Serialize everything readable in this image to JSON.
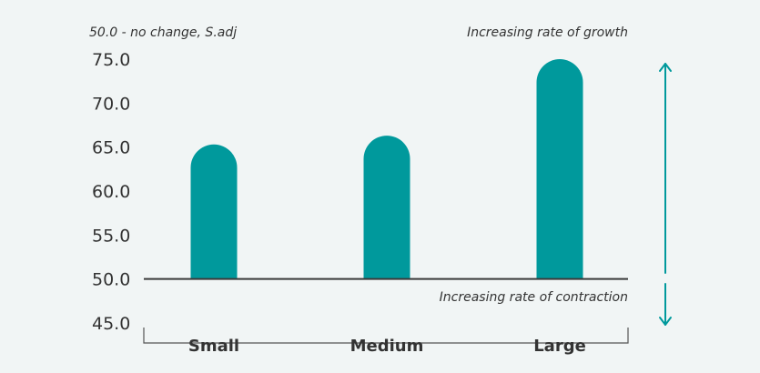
{
  "chart_data": {
    "type": "bar",
    "title": "",
    "subtitle": "50.0 - no change, S.adj",
    "xlabel": "",
    "ylabel": "",
    "categories": [
      "Small",
      "Medium",
      "Large"
    ],
    "values": [
      65.3,
      66.3,
      75.0
    ],
    "ylim": [
      45,
      75
    ],
    "baseline": 50,
    "yticks": [
      "75.0",
      "70.0",
      "65.0",
      "60.0",
      "55.0",
      "50.0",
      "45.0"
    ],
    "bar_color": "#00999c",
    "arrow_color": "#00999c",
    "grid": false,
    "annotations": {
      "top": "Increasing rate of growth",
      "bottom": "Increasing rate of contraction"
    }
  }
}
